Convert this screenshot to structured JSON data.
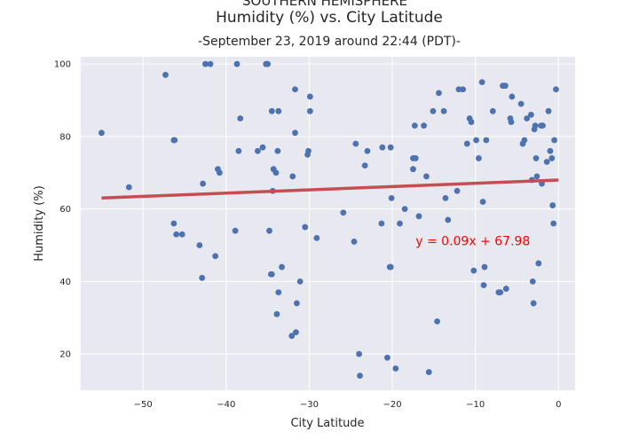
{
  "chart_data": {
    "type": "scatter",
    "title_lines": [
      "SOUTHERN HEMISPHERE",
      "Humidity (%) vs. City Latitude"
    ],
    "subtitle": "-September 23, 2019 around 22:44 (PDT)-",
    "xlabel": "City Latitude",
    "ylabel": "Humidity (%)",
    "xlim": [
      -57.5,
      2
    ],
    "ylim": [
      10,
      102
    ],
    "xticks": [
      -50,
      -40,
      -30,
      -20,
      -10,
      0
    ],
    "yticks": [
      20,
      40,
      60,
      80,
      100
    ],
    "grid": true,
    "background": "#e8e8f1",
    "point_color": "#4c72b0",
    "regression": {
      "slope": 0.09,
      "intercept": 67.98,
      "x_range": [
        -55,
        0
      ],
      "color": "#c44e52",
      "equation_label": "y = 0.09x + 67.98",
      "label_color": "#ff0000",
      "label_x": -17.2,
      "label_y": 50
    },
    "points": [
      [
        -55,
        81
      ],
      [
        -51.7,
        66
      ],
      [
        -47.3,
        97
      ],
      [
        -46.3,
        79
      ],
      [
        -46.2,
        79
      ],
      [
        -46.3,
        56
      ],
      [
        -46,
        53
      ],
      [
        -45.3,
        53
      ],
      [
        -43.2,
        50
      ],
      [
        -42.9,
        41
      ],
      [
        -42.8,
        67
      ],
      [
        -42.5,
        100
      ],
      [
        -41.9,
        100
      ],
      [
        -41.3,
        47
      ],
      [
        -41,
        71
      ],
      [
        -40.8,
        70
      ],
      [
        -38.9,
        54
      ],
      [
        -38.7,
        100
      ],
      [
        -38.5,
        76
      ],
      [
        -38.3,
        85
      ],
      [
        -36.2,
        76
      ],
      [
        -35.6,
        77
      ],
      [
        -35.2,
        100
      ],
      [
        -35,
        100
      ],
      [
        -34.8,
        54
      ],
      [
        -34.6,
        42
      ],
      [
        -34.5,
        42
      ],
      [
        -34.5,
        87
      ],
      [
        -34.4,
        65
      ],
      [
        -34.3,
        71
      ],
      [
        -34,
        70
      ],
      [
        -33.8,
        76
      ],
      [
        -33.9,
        31
      ],
      [
        -33.7,
        37
      ],
      [
        -33.7,
        87
      ],
      [
        -33.3,
        44
      ],
      [
        -32.1,
        25
      ],
      [
        -32,
        69
      ],
      [
        -31.7,
        93
      ],
      [
        -31.7,
        81
      ],
      [
        -31.6,
        26
      ],
      [
        -31.5,
        34
      ],
      [
        -31.1,
        40
      ],
      [
        -30.5,
        55
      ],
      [
        -30.2,
        75
      ],
      [
        -30.1,
        76
      ],
      [
        -29.9,
        91
      ],
      [
        -29.9,
        87
      ],
      [
        -29.1,
        52
      ],
      [
        -25.9,
        59
      ],
      [
        -24.6,
        51
      ],
      [
        -24.4,
        78
      ],
      [
        -24,
        20
      ],
      [
        -23.9,
        14
      ],
      [
        -23.3,
        72
      ],
      [
        -23,
        76
      ],
      [
        -21.3,
        56
      ],
      [
        -21.2,
        77
      ],
      [
        -20.6,
        19
      ],
      [
        -20.3,
        44
      ],
      [
        -20.2,
        44
      ],
      [
        -20.2,
        77
      ],
      [
        -20.1,
        63
      ],
      [
        -19.6,
        16
      ],
      [
        -19.1,
        56
      ],
      [
        -18.5,
        60
      ],
      [
        -17.5,
        71
      ],
      [
        -17.5,
        74
      ],
      [
        -17.3,
        83
      ],
      [
        -17.2,
        74
      ],
      [
        -16.8,
        58
      ],
      [
        -16.2,
        83
      ],
      [
        -15.9,
        69
      ],
      [
        -15.6,
        15
      ],
      [
        -15.1,
        87
      ],
      [
        -14.6,
        29
      ],
      [
        -14.4,
        92
      ],
      [
        -13.8,
        87
      ],
      [
        -13.6,
        63
      ],
      [
        -13.3,
        57
      ],
      [
        -12.2,
        65
      ],
      [
        -12,
        93
      ],
      [
        -11.5,
        93
      ],
      [
        -11,
        78
      ],
      [
        -10.7,
        85
      ],
      [
        -10.5,
        84
      ],
      [
        -10.2,
        43
      ],
      [
        -9.9,
        79
      ],
      [
        -9.6,
        74
      ],
      [
        -9.2,
        95
      ],
      [
        -9.1,
        62
      ],
      [
        -9,
        39
      ],
      [
        -8.9,
        44
      ],
      [
        -8.7,
        79
      ],
      [
        -7.9,
        87
      ],
      [
        -7.2,
        37
      ],
      [
        -7,
        37
      ],
      [
        -6.7,
        94
      ],
      [
        -6.4,
        94
      ],
      [
        -6.3,
        38
      ],
      [
        -5.8,
        85
      ],
      [
        -5.7,
        84
      ],
      [
        -5.6,
        91
      ],
      [
        -4.5,
        89
      ],
      [
        -4.3,
        78
      ],
      [
        -4.1,
        79
      ],
      [
        -3.8,
        85
      ],
      [
        -3.3,
        86
      ],
      [
        -3.2,
        68
      ],
      [
        -3.1,
        40
      ],
      [
        -3,
        34
      ],
      [
        -2.9,
        82
      ],
      [
        -2.8,
        83
      ],
      [
        -2.7,
        74
      ],
      [
        -2.6,
        69
      ],
      [
        -2.4,
        45
      ],
      [
        -2.1,
        83
      ],
      [
        -2,
        67
      ],
      [
        -1.9,
        83
      ],
      [
        -1.4,
        73
      ],
      [
        -1.2,
        87
      ],
      [
        -1,
        76
      ],
      [
        -0.8,
        74
      ],
      [
        -0.7,
        61
      ],
      [
        -0.6,
        56
      ],
      [
        -0.5,
        79
      ],
      [
        -0.3,
        93
      ]
    ]
  }
}
